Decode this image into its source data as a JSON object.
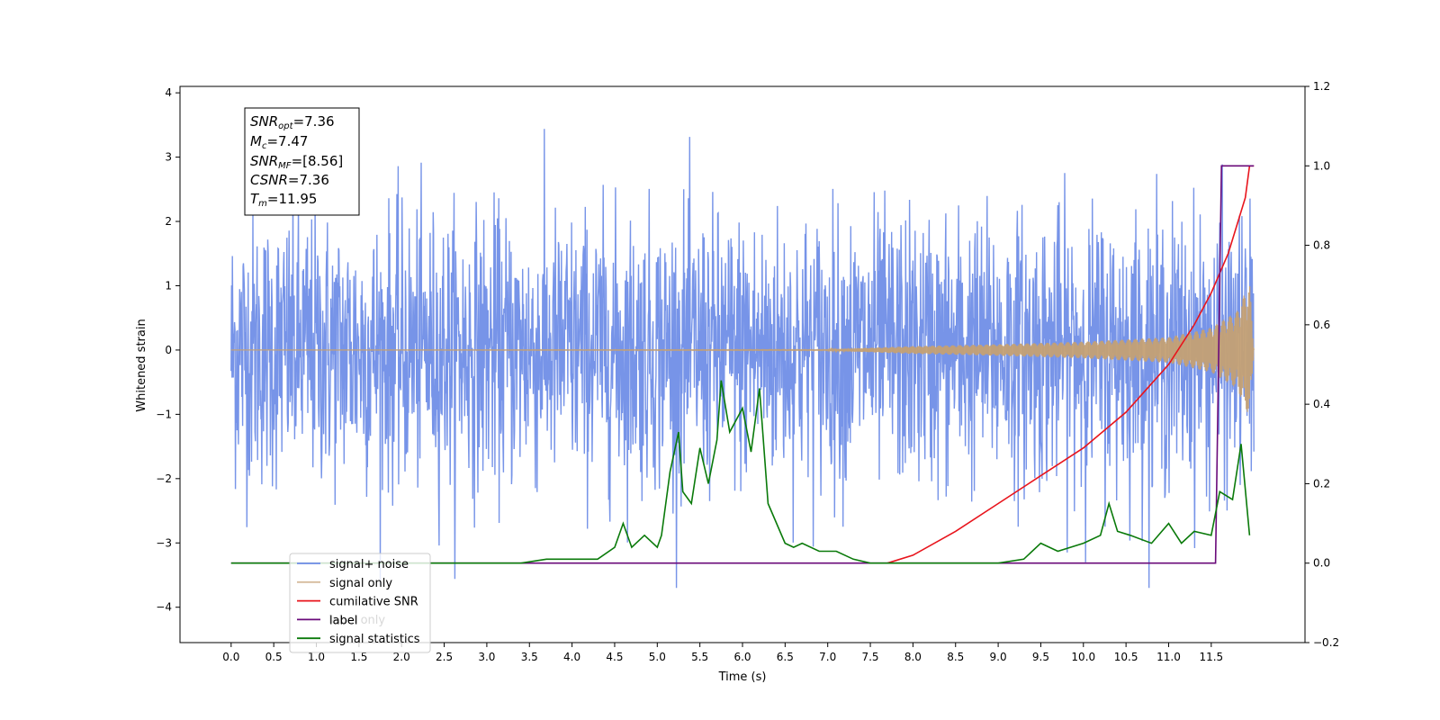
{
  "chart_data": {
    "type": "line",
    "xlabel": "Time (s)",
    "ylabel": "Whitened strain",
    "xlim": [
      -0.6,
      12.6
    ],
    "ylim_left": [
      -4.55,
      4.1
    ],
    "ylim_right": [
      -0.2,
      1.2
    ],
    "x_ticks": [
      "0.0",
      "0.5",
      "1.0",
      "1.5",
      "2.0",
      "2.5",
      "3.0",
      "3.5",
      "4.0",
      "4.5",
      "5.0",
      "5.5",
      "6.0",
      "6.5",
      "7.0",
      "7.5",
      "8.0",
      "8.5",
      "9.0",
      "9.5",
      "10.0",
      "10.5",
      "11.0",
      "11.5"
    ],
    "y_ticks_left": [
      -4,
      -3,
      -2,
      -1,
      0,
      1,
      2,
      3,
      4
    ],
    "y_ticks_right": [
      "−0.2",
      "0.0",
      "0.2",
      "0.4",
      "0.6",
      "0.8",
      "1.0",
      "1.2"
    ],
    "legend_position": "lower-left",
    "colors": {
      "signal_noise": "#6b8be6",
      "signal_only": "#c4a074",
      "cumulative_snr": "#e8141c",
      "label": "#6a0a7a",
      "signal_statistics": "#0a7a0a"
    },
    "series": [
      {
        "name": "signal+ noise",
        "axis": "left",
        "x_range": [
          0.0,
          12.0
        ],
        "amplitude": 1.05,
        "peak_abs": 3.7
      },
      {
        "name": "signal only",
        "axis": "left",
        "x_range": [
          0.0,
          12.0
        ],
        "envelope": [
          [
            7.0,
            0.01
          ],
          [
            8.0,
            0.06
          ],
          [
            9.0,
            0.09
          ],
          [
            10.0,
            0.13
          ],
          [
            11.0,
            0.2
          ],
          [
            11.5,
            0.35
          ],
          [
            11.8,
            0.6
          ],
          [
            11.95,
            1.05
          ],
          [
            12.0,
            0.0
          ]
        ]
      },
      {
        "name": "cumilative SNR",
        "axis": "right",
        "x": [
          7.7,
          8.0,
          8.5,
          9.0,
          9.5,
          10.0,
          10.5,
          11.0,
          11.3,
          11.5,
          11.7,
          11.9,
          11.95,
          12.0
        ],
        "y": [
          0.0,
          0.02,
          0.08,
          0.15,
          0.22,
          0.29,
          0.38,
          0.5,
          0.6,
          0.68,
          0.78,
          0.92,
          1.0,
          1.0
        ]
      },
      {
        "name": "label",
        "axis": "right",
        "x": [
          0.0,
          11.55,
          11.62,
          11.95,
          12.0
        ],
        "y": [
          0.0,
          0.0,
          1.0,
          1.0,
          1.0
        ]
      },
      {
        "name": "signal statistics",
        "axis": "right",
        "x": [
          0.0,
          3.4,
          3.7,
          4.0,
          4.3,
          4.5,
          4.6,
          4.7,
          4.85,
          5.0,
          5.05,
          5.15,
          5.25,
          5.3,
          5.4,
          5.5,
          5.6,
          5.7,
          5.75,
          5.85,
          6.0,
          6.1,
          6.2,
          6.3,
          6.5,
          6.6,
          6.7,
          6.9,
          7.1,
          7.3,
          7.5,
          7.7,
          8.0,
          8.3,
          8.6,
          9.0,
          9.3,
          9.5,
          9.7,
          10.0,
          10.2,
          10.3,
          10.4,
          10.55,
          10.8,
          11.0,
          11.15,
          11.3,
          11.5,
          11.6,
          11.75,
          11.85,
          11.95
        ],
        "y": [
          0.0,
          0.0,
          0.01,
          0.01,
          0.01,
          0.04,
          0.1,
          0.04,
          0.07,
          0.04,
          0.07,
          0.23,
          0.33,
          0.18,
          0.15,
          0.29,
          0.2,
          0.31,
          0.46,
          0.33,
          0.39,
          0.28,
          0.44,
          0.15,
          0.05,
          0.04,
          0.05,
          0.03,
          0.03,
          0.01,
          0.0,
          0.0,
          0.0,
          0.0,
          0.0,
          0.0,
          0.01,
          0.05,
          0.03,
          0.05,
          0.07,
          0.15,
          0.08,
          0.07,
          0.05,
          0.1,
          0.05,
          0.08,
          0.07,
          0.18,
          0.16,
          0.3,
          0.07
        ]
      }
    ],
    "annotation": [
      {
        "base": "SNR",
        "sub": "opt",
        "value": "=7.36"
      },
      {
        "base": "M",
        "sub": "c",
        "value": "=7.47"
      },
      {
        "base": "SNR",
        "sub": "MF",
        "value": "=[8.56]"
      },
      {
        "base": "CSNR",
        "sub": "",
        "value": "=7.36"
      },
      {
        "base": "T",
        "sub": "m",
        "value": "=11.95"
      }
    ],
    "legend": [
      {
        "label": "signal+ noise",
        "color_key": "signal_noise"
      },
      {
        "label": "signal only",
        "color_key": "signal_only"
      },
      {
        "label": "cumilative SNR",
        "color_key": "cumulative_snr"
      },
      {
        "label": "label",
        "color_key": "label"
      },
      {
        "label": "signal statistics",
        "color_key": "signal_statistics"
      }
    ],
    "hidden_legend_text": [
      "label only"
    ]
  }
}
